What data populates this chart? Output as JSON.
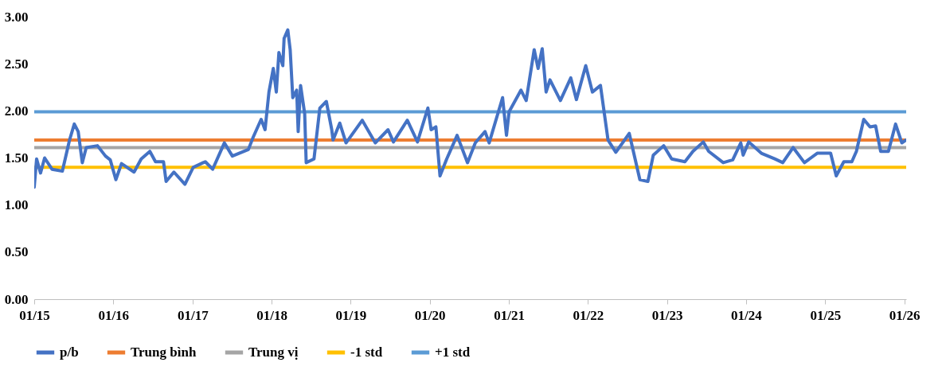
{
  "chart_data": {
    "type": "line",
    "x": [
      "2015-01-01",
      "2015-01-12",
      "2015-01-30",
      "2015-02-18",
      "2015-03-24",
      "2015-05-11",
      "2015-06-13",
      "2015-07-05",
      "2015-07-23",
      "2015-08-11",
      "2015-08-29",
      "2015-10-20",
      "2015-11-26",
      "2015-12-18",
      "2016-01-13",
      "2016-02-08",
      "2016-04-06",
      "2016-05-09",
      "2016-06-18",
      "2016-07-14",
      "2016-08-20",
      "2016-09-01",
      "2016-10-07",
      "2016-11-27",
      "2017-01-04",
      "2017-03-01",
      "2017-04-04",
      "2017-05-28",
      "2017-07-04",
      "2017-09-16",
      "2017-10-08",
      "2017-11-14",
      "2017-12-02",
      "2017-12-20",
      "2018-01-09",
      "2018-01-23",
      "2018-02-04",
      "2018-02-22",
      "2018-02-28",
      "2018-03-17",
      "2018-03-28",
      "2018-04-09",
      "2018-04-27",
      "2018-05-04",
      "2018-05-15",
      "2018-06-03",
      "2018-06-10",
      "2018-07-16",
      "2018-08-12",
      "2018-09-11",
      "2018-10-06",
      "2018-10-12",
      "2018-11-12",
      "2018-12-11",
      "2019-02-24",
      "2019-04-25",
      "2019-06-23",
      "2019-07-18",
      "2019-09-20",
      "2019-11-06",
      "2019-12-24",
      "2020-01-08",
      "2020-01-30",
      "2020-02-18",
      "2020-03-20",
      "2020-05-07",
      "2020-06-24",
      "2020-07-30",
      "2020-09-13",
      "2020-10-02",
      "2020-12-03",
      "2020-12-21",
      "2021-01-02",
      "2021-02-26",
      "2021-03-22",
      "2021-04-28",
      "2021-05-16",
      "2021-06-04",
      "2021-06-22",
      "2021-07-10",
      "2021-08-27",
      "2021-10-14",
      "2021-11-09",
      "2021-12-22",
      "2022-01-22",
      "2022-02-28",
      "2022-04-04",
      "2022-05-10",
      "2022-07-11",
      "2022-08-29",
      "2022-10-05",
      "2022-10-30",
      "2022-12-17",
      "2023-01-23",
      "2023-03-25",
      "2023-05-01",
      "2023-06-18",
      "2023-07-13",
      "2023-09-18",
      "2023-11-01",
      "2023-12-08",
      "2023-12-19",
      "2024-01-14",
      "2024-03-12",
      "2024-05-13",
      "2024-06-19",
      "2024-08-06",
      "2024-09-27",
      "2024-11-25",
      "2025-01-26",
      "2025-02-21",
      "2025-03-28",
      "2025-05-04",
      "2025-05-25",
      "2025-06-28",
      "2025-07-27",
      "2025-08-22",
      "2025-09-14",
      "2025-10-20",
      "2025-11-22",
      "2025-12-21",
      "2026-01-09"
    ],
    "series": [
      {
        "name": "p/b",
        "color": "#4472c4",
        "values": [
          1.19,
          1.49,
          1.34,
          1.5,
          1.38,
          1.36,
          1.69,
          1.86,
          1.78,
          1.45,
          1.61,
          1.63,
          1.52,
          1.48,
          1.27,
          1.44,
          1.35,
          1.49,
          1.57,
          1.46,
          1.46,
          1.25,
          1.35,
          1.22,
          1.4,
          1.46,
          1.38,
          1.66,
          1.52,
          1.59,
          1.72,
          1.91,
          1.8,
          2.2,
          2.45,
          2.2,
          2.62,
          2.48,
          2.77,
          2.86,
          2.65,
          2.14,
          2.22,
          1.78,
          2.27,
          1.97,
          1.45,
          1.49,
          2.03,
          2.1,
          1.8,
          1.69,
          1.87,
          1.66,
          1.9,
          1.66,
          1.8,
          1.67,
          1.9,
          1.67,
          2.03,
          1.8,
          1.83,
          1.31,
          1.49,
          1.74,
          1.45,
          1.66,
          1.78,
          1.66,
          2.14,
          1.74,
          1.99,
          2.22,
          2.11,
          2.65,
          2.45,
          2.66,
          2.2,
          2.33,
          2.11,
          2.35,
          2.12,
          2.48,
          2.2,
          2.27,
          1.69,
          1.56,
          1.76,
          1.27,
          1.25,
          1.53,
          1.63,
          1.49,
          1.46,
          1.57,
          1.67,
          1.57,
          1.45,
          1.48,
          1.66,
          1.53,
          1.67,
          1.55,
          1.49,
          1.45,
          1.61,
          1.45,
          1.55,
          1.55,
          1.31,
          1.46,
          1.46,
          1.57,
          1.91,
          1.83,
          1.84,
          1.57,
          1.57,
          1.86,
          1.66,
          1.69
        ]
      }
    ],
    "ref_lines": [
      {
        "axis": "y",
        "value": 1.69,
        "label": "Trung bình",
        "color": "#ed7d31"
      },
      {
        "axis": "y",
        "value": 1.61,
        "label": "Trung vị",
        "color": "#a5a5a5"
      },
      {
        "axis": "y",
        "value": 1.4,
        "label": "-1 std",
        "color": "#ffc000"
      },
      {
        "axis": "y",
        "value": 1.99,
        "label": "+1 std",
        "color": "#5b9bd5"
      }
    ],
    "xlim": [
      "2015-01-01",
      "2026-01-10"
    ],
    "xticks": [
      {
        "value": "2015-01-01",
        "label": "01/15"
      },
      {
        "value": "2016-01-01",
        "label": "01/16"
      },
      {
        "value": "2017-01-01",
        "label": "01/17"
      },
      {
        "value": "2018-01-01",
        "label": "01/18"
      },
      {
        "value": "2019-01-01",
        "label": "01/19"
      },
      {
        "value": "2020-01-01",
        "label": "01/20"
      },
      {
        "value": "2021-01-01",
        "label": "01/21"
      },
      {
        "value": "2022-01-01",
        "label": "01/22"
      },
      {
        "value": "2023-01-01",
        "label": "01/23"
      },
      {
        "value": "2024-01-01",
        "label": "01/24"
      },
      {
        "value": "2025-01-01",
        "label": "01/25"
      },
      {
        "value": "2026-01-01",
        "label": "01/26"
      }
    ],
    "ylim": [
      0,
      3
    ],
    "yticks": [
      {
        "value": 0,
        "label": "0.00"
      },
      {
        "value": 0.5,
        "label": "0.50"
      },
      {
        "value": 1,
        "label": "1.00"
      },
      {
        "value": 1.5,
        "label": "1.50"
      },
      {
        "value": 2,
        "label": "2.00"
      },
      {
        "value": 2.5,
        "label": "2.50"
      },
      {
        "value": 3,
        "label": "3.00"
      }
    ],
    "grid": false,
    "legend": "bottom",
    "marker": "none",
    "line_style": "solid"
  }
}
